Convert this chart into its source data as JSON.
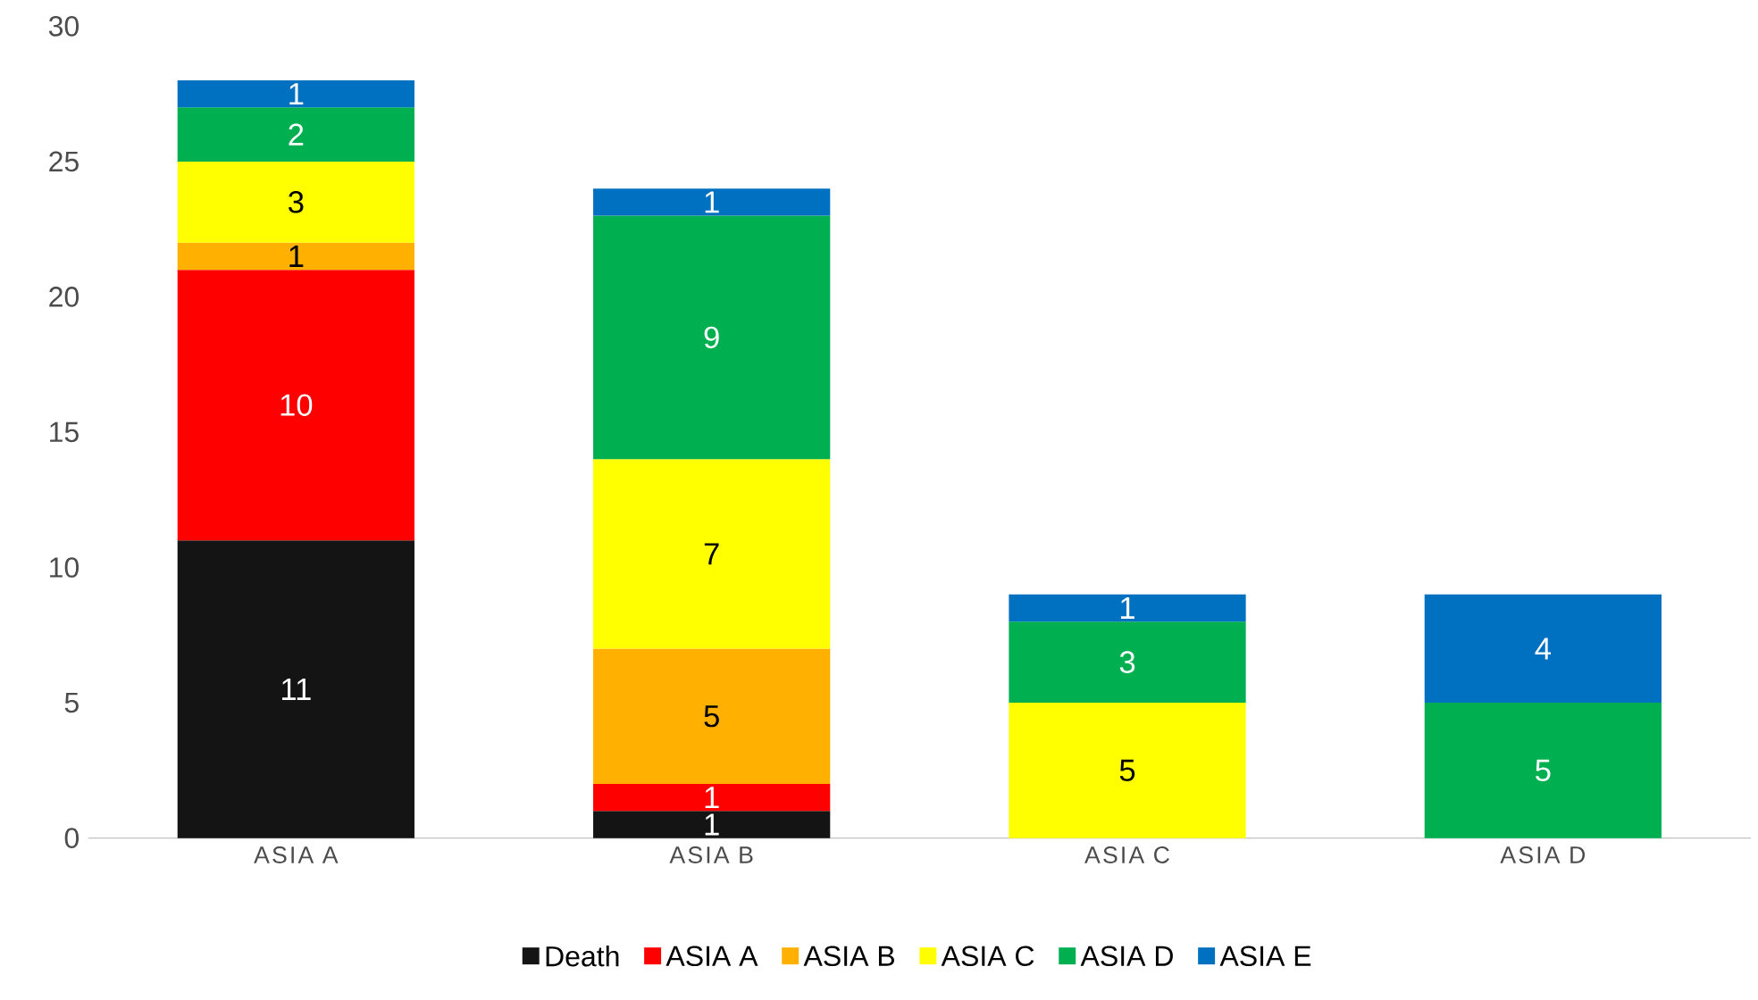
{
  "chart_data": {
    "type": "bar",
    "stacked": true,
    "categories": [
      "ASIA A",
      "ASIA B",
      "ASIA C",
      "ASIA D"
    ],
    "series": [
      {
        "name": "Death",
        "color": "#141414",
        "values": [
          11,
          1,
          null,
          null
        ]
      },
      {
        "name": "ASIA A",
        "color": "#ff0000",
        "values": [
          10,
          1,
          null,
          null
        ]
      },
      {
        "name": "ASIA B",
        "color": "#ffb000",
        "values": [
          1,
          5,
          null,
          null
        ]
      },
      {
        "name": "ASIA C",
        "color": "#ffff00",
        "values": [
          3,
          7,
          5,
          null
        ]
      },
      {
        "name": "ASIA D",
        "color": "#00b050",
        "values": [
          2,
          9,
          3,
          5
        ]
      },
      {
        "name": "ASIA E",
        "color": "#0070c0",
        "values": [
          1,
          1,
          1,
          4
        ]
      }
    ],
    "ylim": [
      0,
      30
    ],
    "yticks": [
      0,
      5,
      10,
      15,
      20,
      25,
      30
    ],
    "data_labels": true,
    "legend": "bottom",
    "grid": false
  }
}
